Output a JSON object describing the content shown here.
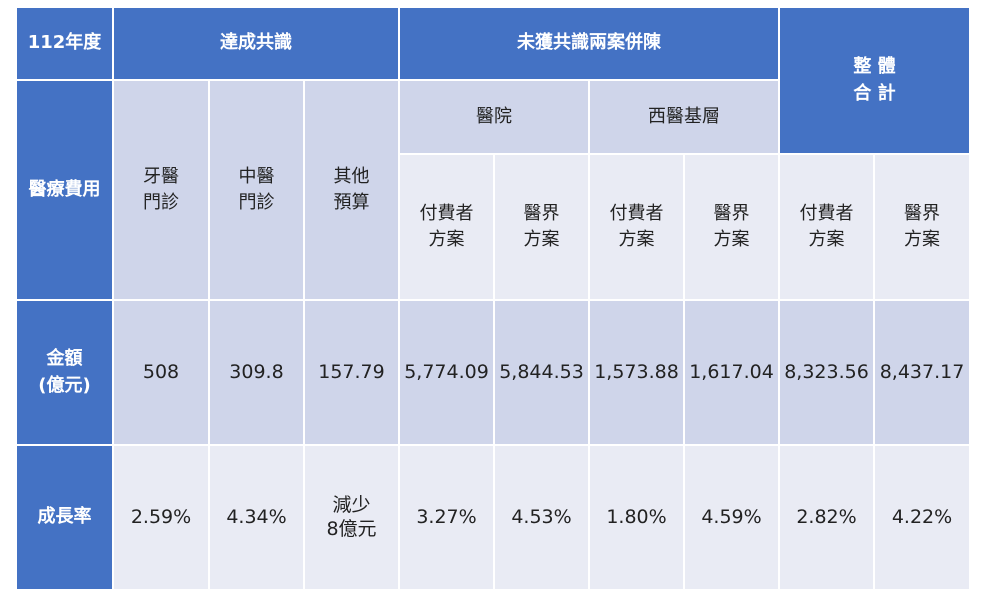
{
  "header": {
    "year": "112年度",
    "consensus": "達成共識",
    "no_consensus": "未獲共識兩案併陳",
    "overall_line1": "整 體",
    "overall_line2": "合 計"
  },
  "row_labels": {
    "medical_cost": "醫療費用",
    "amount_line1": "金額",
    "amount_line2": "(億元)",
    "growth": "成長率"
  },
  "categories": {
    "dental_line1": "牙醫",
    "dental_line2": "門診",
    "tcm_line1": "中醫",
    "tcm_line2": "門診",
    "other_line1": "其他",
    "other_line2": "預算",
    "hospital": "醫院",
    "western_primary": "西醫基層"
  },
  "plans": {
    "payer_line1": "付費者",
    "payer_line2": "方案",
    "provider_line1": "醫界",
    "provider_line2": "方案"
  },
  "amounts": {
    "dental": "508",
    "tcm": "309.8",
    "other": "157.79",
    "hospital_payer": "5,774.09",
    "hospital_provider": "5,844.53",
    "primary_payer": "1,573.88",
    "primary_provider": "1,617.04",
    "total_payer": "8,323.56",
    "total_provider": "8,437.17"
  },
  "growth": {
    "dental": "2.59%",
    "tcm": "4.34%",
    "other_line1": "減少",
    "other_line2": "8億元",
    "hospital_payer": "3.27%",
    "hospital_provider": "4.53%",
    "primary_payer": "1.80%",
    "primary_provider": "4.59%",
    "total_payer": "2.82%",
    "total_provider": "4.22%"
  },
  "colors": {
    "header_blue": "#4472c4",
    "band_light": "#e9ebf4",
    "band_medium": "#cfd5ea"
  }
}
